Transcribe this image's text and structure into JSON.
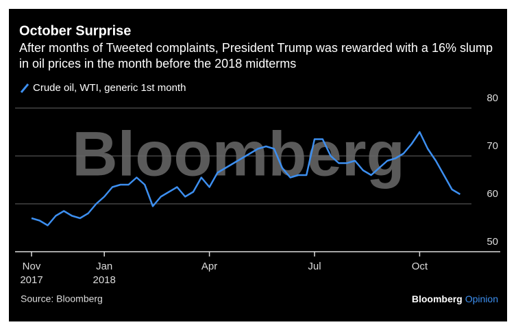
{
  "chart_data": {
    "type": "line",
    "title": "October Surprise",
    "subtitle": "After months of Tweeted complaints, President Trump was rewarded with a 16% slump in oil prices in the month before the 2018 midterms",
    "watermark": "Bloomberg",
    "source": "Source: Bloomberg",
    "brand": "Bloomberg",
    "brand_suffix": "Opinion",
    "categories": [
      "Nov 2017",
      null,
      null,
      null,
      null,
      null,
      null,
      null,
      null,
      "Jan 2018",
      null,
      null,
      null,
      null,
      null,
      null,
      null,
      null,
      null,
      null,
      null,
      null,
      "Apr",
      null,
      null,
      null,
      null,
      null,
      null,
      null,
      null,
      null,
      null,
      null,
      null,
      "Jul",
      null,
      null,
      null,
      null,
      null,
      null,
      null,
      null,
      null,
      null,
      null,
      null,
      "Oct",
      null,
      null,
      null,
      null,
      null
    ],
    "series": [
      {
        "name": "Crude oil, WTI, generic 1st month",
        "color": "#3d8ff0",
        "values": [
          57,
          56.5,
          55.5,
          57.5,
          58.5,
          57.5,
          57,
          58,
          60,
          61.5,
          63.5,
          64,
          64,
          65.5,
          64,
          59.5,
          61.5,
          62.5,
          63.5,
          61.5,
          62.5,
          65.5,
          63.5,
          66.5,
          67.5,
          68.5,
          69.5,
          70.5,
          71.5,
          72,
          71.5,
          67.5,
          65.5,
          66,
          66,
          73.5,
          73.5,
          70,
          68.5,
          68.5,
          69,
          67,
          66,
          67.5,
          69,
          69.5,
          70.5,
          72.5,
          75,
          71.5,
          69,
          66,
          63,
          62
        ]
      }
    ],
    "ylim": [
      50,
      82
    ],
    "yticks": [
      50,
      60,
      70,
      80
    ],
    "grid": true
  }
}
